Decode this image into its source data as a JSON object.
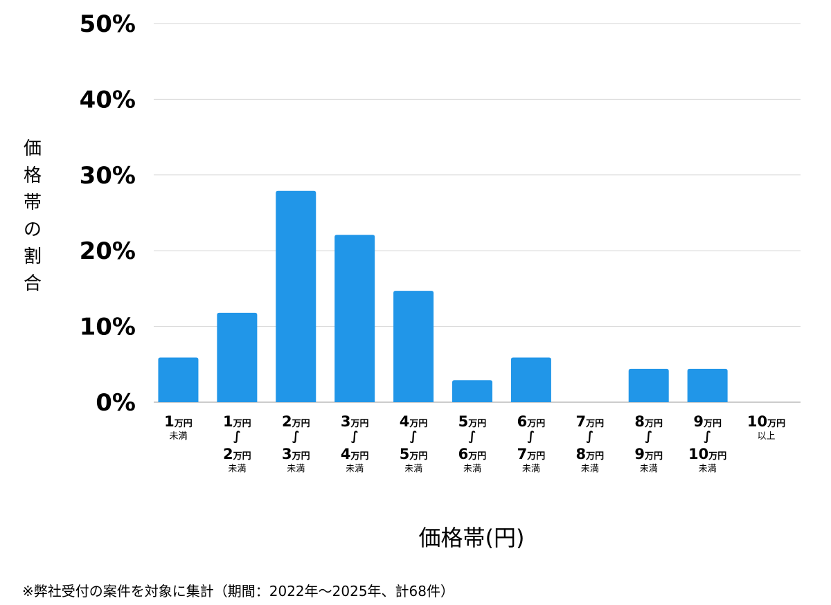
{
  "chart_data": {
    "type": "bar",
    "ylabel": "価格帯の割合",
    "xlabel": "価格帯(円)",
    "ylim": [
      0,
      50
    ],
    "yticks": [
      "0%",
      "10%",
      "20%",
      "30%",
      "40%",
      "50%"
    ],
    "ytick_values": [
      0,
      10,
      20,
      30,
      40,
      50
    ],
    "grid": true,
    "bar_color": "#2196e8",
    "categories": [
      {
        "lines": [
          {
            "num": "1",
            "unit": "万円"
          },
          {
            "small": "未満"
          }
        ]
      },
      {
        "lines": [
          {
            "num": "1",
            "unit": "万円"
          },
          {
            "wave": "∫"
          },
          {
            "num": "2",
            "unit": "万円"
          },
          {
            "small": "未満"
          }
        ]
      },
      {
        "lines": [
          {
            "num": "2",
            "unit": "万円"
          },
          {
            "wave": "∫"
          },
          {
            "num": "3",
            "unit": "万円"
          },
          {
            "small": "未満"
          }
        ]
      },
      {
        "lines": [
          {
            "num": "3",
            "unit": "万円"
          },
          {
            "wave": "∫"
          },
          {
            "num": "4",
            "unit": "万円"
          },
          {
            "small": "未満"
          }
        ]
      },
      {
        "lines": [
          {
            "num": "4",
            "unit": "万円"
          },
          {
            "wave": "∫"
          },
          {
            "num": "5",
            "unit": "万円"
          },
          {
            "small": "未満"
          }
        ]
      },
      {
        "lines": [
          {
            "num": "5",
            "unit": "万円"
          },
          {
            "wave": "∫"
          },
          {
            "num": "6",
            "unit": "万円"
          },
          {
            "small": "未満"
          }
        ]
      },
      {
        "lines": [
          {
            "num": "6",
            "unit": "万円"
          },
          {
            "wave": "∫"
          },
          {
            "num": "7",
            "unit": "万円"
          },
          {
            "small": "未満"
          }
        ]
      },
      {
        "lines": [
          {
            "num": "7",
            "unit": "万円"
          },
          {
            "wave": "∫"
          },
          {
            "num": "8",
            "unit": "万円"
          },
          {
            "small": "未満"
          }
        ]
      },
      {
        "lines": [
          {
            "num": "8",
            "unit": "万円"
          },
          {
            "wave": "∫"
          },
          {
            "num": "9",
            "unit": "万円"
          },
          {
            "small": "未満"
          }
        ]
      },
      {
        "lines": [
          {
            "num": "9",
            "unit": "万円"
          },
          {
            "wave": "∫"
          },
          {
            "num": "10",
            "unit": "万円"
          },
          {
            "small": "未満"
          }
        ]
      },
      {
        "lines": [
          {
            "num": "10",
            "unit": "万円"
          },
          {
            "small": "以上"
          }
        ]
      }
    ],
    "values": [
      5.9,
      11.8,
      27.9,
      22.1,
      14.7,
      2.9,
      5.9,
      0,
      4.4,
      4.4,
      0
    ]
  },
  "footnote": "※弊社受付の案件を対象に集計（期間：2022年～2025年、計68件）"
}
